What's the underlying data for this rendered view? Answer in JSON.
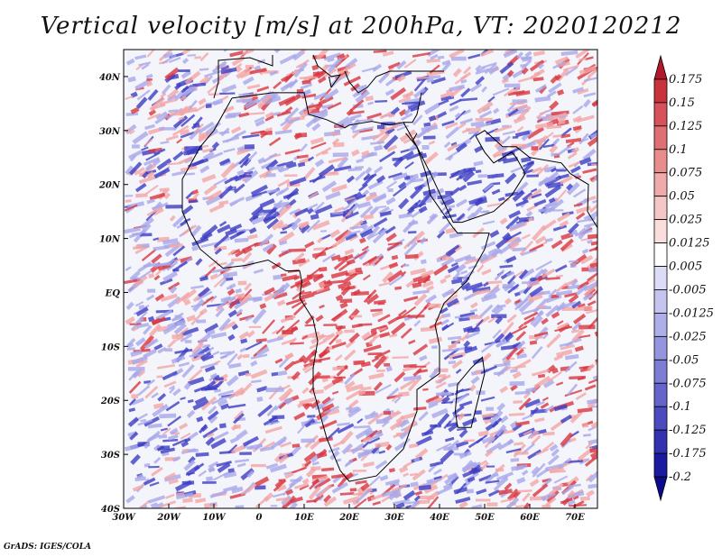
{
  "title": "Vertical velocity [m/s] at 200hPa, VT: 2020120212",
  "credit": "GrADS: IGES/COLA",
  "axes": {
    "lon_labels": [
      "30W",
      "20W",
      "10W",
      "0",
      "10E",
      "20E",
      "30E",
      "40E",
      "50E",
      "60E",
      "70E"
    ],
    "lat_labels": [
      "40N",
      "30N",
      "20N",
      "10N",
      "EQ",
      "10S",
      "20S",
      "30S",
      "40S"
    ],
    "lon_range": [
      -30,
      75
    ],
    "lat_range": [
      -40,
      45
    ]
  },
  "colorbar": {
    "levels": [
      "0.175",
      "0.15",
      "0.125",
      "0.1",
      "0.075",
      "0.05",
      "0.025",
      "0.0125",
      "0.005",
      "-0.005",
      "-0.0125",
      "-0.025",
      "-0.05",
      "-0.075",
      "-0.1",
      "-0.125",
      "-0.175",
      "-0.2"
    ],
    "colors": [
      "#b2182b",
      "#c8333b",
      "#d6515a",
      "#e06f74",
      "#e88c8e",
      "#efaaaa",
      "#f5c6c6",
      "#fadede",
      "#ffffff",
      "#dcdcf6",
      "#c4c4ef",
      "#aeaee8",
      "#9595df",
      "#7d7dd6",
      "#6464cc",
      "#4b4bbf",
      "#3232b0",
      "#1a1aa0",
      "#0a0a8c"
    ]
  },
  "field_colors": {
    "pos_strong": "#d9363e",
    "pos_light": "#f2a5a5",
    "neg_strong": "#3d3dc4",
    "neg_light": "#a8a8ea",
    "neutral": "#f4f4fb"
  }
}
